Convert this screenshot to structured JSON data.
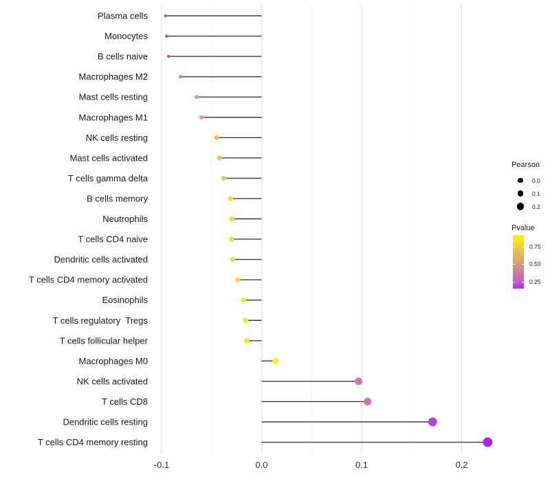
{
  "chart_data": {
    "type": "scatter",
    "subtype": "lollipop",
    "orientation": "horizontal",
    "title": "",
    "xlabel": "",
    "ylabel": "",
    "x_ticks": [
      "-0.1",
      "0.0",
      "0.1",
      "0.2"
    ],
    "x_tick_values": [
      -0.1,
      0.0,
      0.1,
      0.2
    ],
    "xlim": [
      -0.112,
      0.246
    ],
    "grid_minor_values": [
      -0.05,
      0.05,
      0.15
    ],
    "grid_on": true,
    "categories": [
      "Plasma cells",
      "Monocytes",
      "B cells naive",
      "Macrophages M2",
      "Mast cells resting",
      "Macrophages M1",
      "NK cells resting",
      "Mast cells activated",
      "T cells gamma delta",
      "B cells memory",
      "Neutrophils",
      "T cells CD4 naive",
      "Dendritic cells activated",
      "T cells CD4 memory activated",
      "Eosinophils",
      "T cells regulatory  Tregs",
      "T cells follicular helper",
      "Macrophages M0",
      "NK cells activated",
      "T cells CD8",
      "Dendritic cells resting",
      "T cells CD4 memory resting"
    ],
    "series": [
      {
        "name": "Pearson",
        "values": [
          -0.096,
          -0.095,
          -0.093,
          -0.081,
          -0.065,
          -0.06,
          -0.045,
          -0.042,
          -0.038,
          -0.031,
          -0.03,
          -0.03,
          -0.029,
          -0.024,
          -0.018,
          -0.016,
          -0.015,
          0.014,
          0.097,
          0.106,
          0.171,
          0.226
        ]
      }
    ],
    "point_colors": [
      "#C2548B",
      "#C2548B",
      "#C75E8E",
      "#DB8595",
      "#E59C7C",
      "#E7A276",
      "#EEC24D",
      "#EFC646",
      "#F0CB41",
      "#F5DC2E",
      "#F6DF2B",
      "#F6DF2B",
      "#F6E02A",
      "#F7E424",
      "#F9EA1B",
      "#FAED17",
      "#FAED16",
      "#FBF10C",
      "#D678AF",
      "#D373B5",
      "#B93EE5",
      "#A524F0"
    ],
    "stem_color": "#3D3D3D",
    "legend_position": "right",
    "legend": {
      "size": {
        "title": "Pearson",
        "breaks": [
          "0.0",
          "0.1",
          "0.2"
        ],
        "break_values": [
          0.0,
          0.1,
          0.2
        ],
        "key_color": "#000000"
      },
      "color": {
        "title": "Pvalue",
        "ticks": [
          "0.75",
          "0.50",
          "0.25"
        ],
        "tick_values": [
          0.75,
          0.5,
          0.25
        ],
        "gradient_top_color": "#FDF503",
        "gradient_bottom_color": "#B32CEF",
        "gradient_stops": [
          {
            "offset": 0.0,
            "color": "#B32CEF"
          },
          {
            "offset": 0.13,
            "color": "#C160BE"
          },
          {
            "offset": 0.46,
            "color": "#D6977B"
          },
          {
            "offset": 0.79,
            "color": "#EDD23F"
          },
          {
            "offset": 1.0,
            "color": "#FDF503"
          }
        ]
      }
    }
  }
}
